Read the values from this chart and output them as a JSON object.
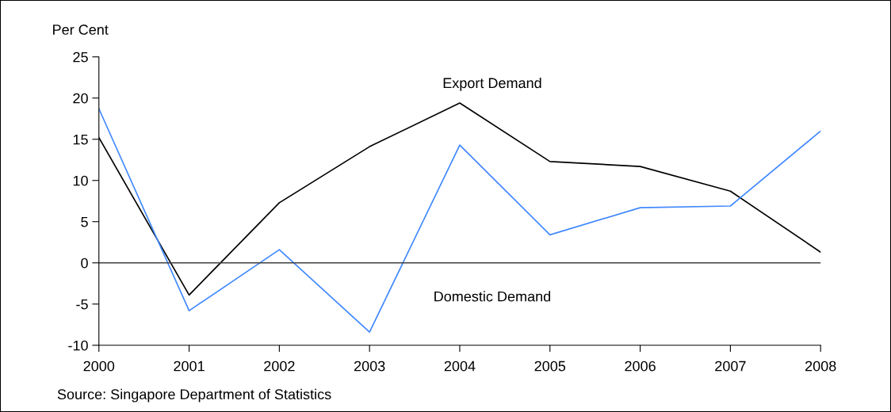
{
  "chart_data": {
    "type": "line",
    "ylabel": "Per Cent",
    "x": [
      2000,
      2001,
      2002,
      2003,
      2004,
      2005,
      2006,
      2007,
      2008
    ],
    "series": [
      {
        "name": "Export Demand",
        "color": "#000000",
        "values": [
          15.2,
          -3.9,
          7.3,
          14.1,
          19.4,
          12.3,
          11.7,
          8.7,
          1.3
        ]
      },
      {
        "name": "Domestic Demand",
        "color": "#4088ff",
        "values": [
          18.7,
          -5.8,
          1.6,
          -8.4,
          14.3,
          3.4,
          6.7,
          6.9,
          16.0
        ]
      }
    ],
    "xlim": [
      2000,
      2008
    ],
    "xticks": [
      2000,
      2001,
      2002,
      2003,
      2004,
      2005,
      2006,
      2007,
      2008
    ],
    "ylim": [
      -10,
      25
    ],
    "yticks": [
      -10,
      -5,
      0,
      5,
      10,
      15,
      20,
      25
    ],
    "ref_lines": [
      {
        "axis": "y",
        "value": 0,
        "color": "#404040"
      }
    ],
    "grid": false,
    "legend": false,
    "annotations": [
      "Source: Singapore Department of Statistics"
    ]
  }
}
